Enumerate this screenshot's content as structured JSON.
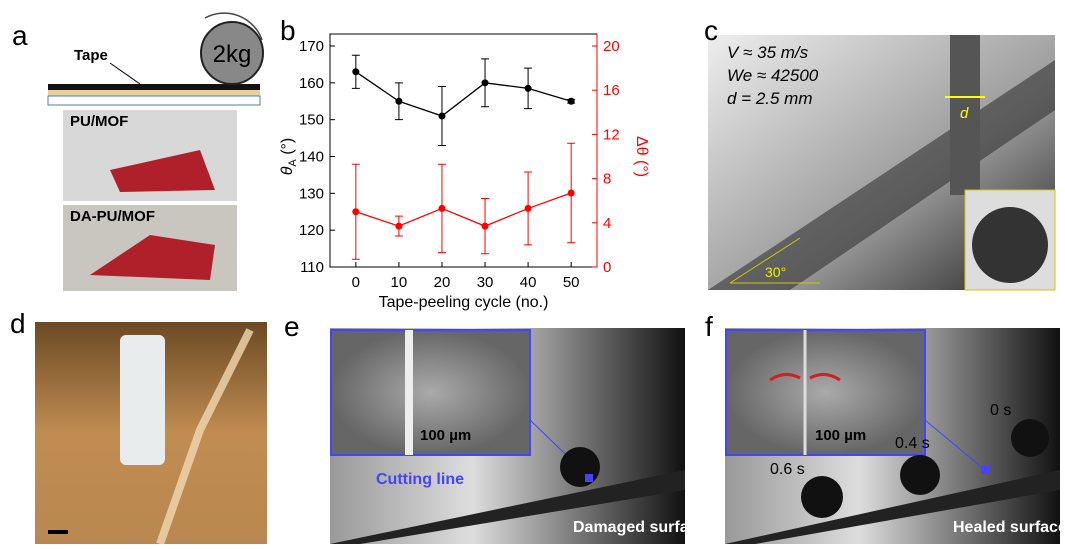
{
  "panel_a": {
    "label": "a",
    "tape": "Tape",
    "weight": "2kg",
    "samples": [
      "PU/MOF",
      "DA-PU/MOF"
    ]
  },
  "chart_data": {
    "type": "line",
    "panel_label": "b",
    "xlabel": "Tape-peeling cycle (no.)",
    "ylabel": {
      "symbol": "θ",
      "sub": "A",
      "unit": " (°)"
    },
    "y2label": "Δθ (°)",
    "x": [
      0,
      10,
      20,
      30,
      40,
      50
    ],
    "xlim": [
      -6,
      56
    ],
    "xticks": [
      0,
      10,
      20,
      30,
      40,
      50
    ],
    "ylim": [
      110,
      170
    ],
    "yticks": [
      110,
      120,
      130,
      140,
      150,
      160,
      170
    ],
    "y2lim": [
      0,
      20
    ],
    "y2ticks": [
      0,
      4,
      8,
      12,
      16,
      20
    ],
    "series": [
      {
        "color": "#000000",
        "values": [
          163,
          155,
          151,
          160,
          158.5,
          155
        ],
        "errors": [
          4.5,
          5,
          8,
          6.5,
          5.5,
          0.5
        ]
      },
      {
        "color": "#ff0000",
        "axis": "y2",
        "values": [
          5,
          3.7,
          5.3,
          3.7,
          5.3,
          6.7
        ],
        "errors": [
          4.3,
          0.9,
          4,
          2.5,
          3.3,
          4.5
        ]
      }
    ]
  },
  "panel_c": {
    "label": "c",
    "lines": [
      "V ≈ 35 m/s",
      "We ≈ 42500",
      "d = 2.5 mm"
    ],
    "diameter": "d",
    "angle": "30°"
  },
  "panel_d": {
    "label": "d"
  },
  "panel_e": {
    "label": "e",
    "scale": "100 µm",
    "cut": "Cutting line",
    "surface": "Damaged surface"
  },
  "panel_f": {
    "label": "f",
    "scale": "100 µm",
    "times": [
      "0 s",
      "0.4 s",
      "0.6 s"
    ],
    "surface": "Healed surface"
  }
}
